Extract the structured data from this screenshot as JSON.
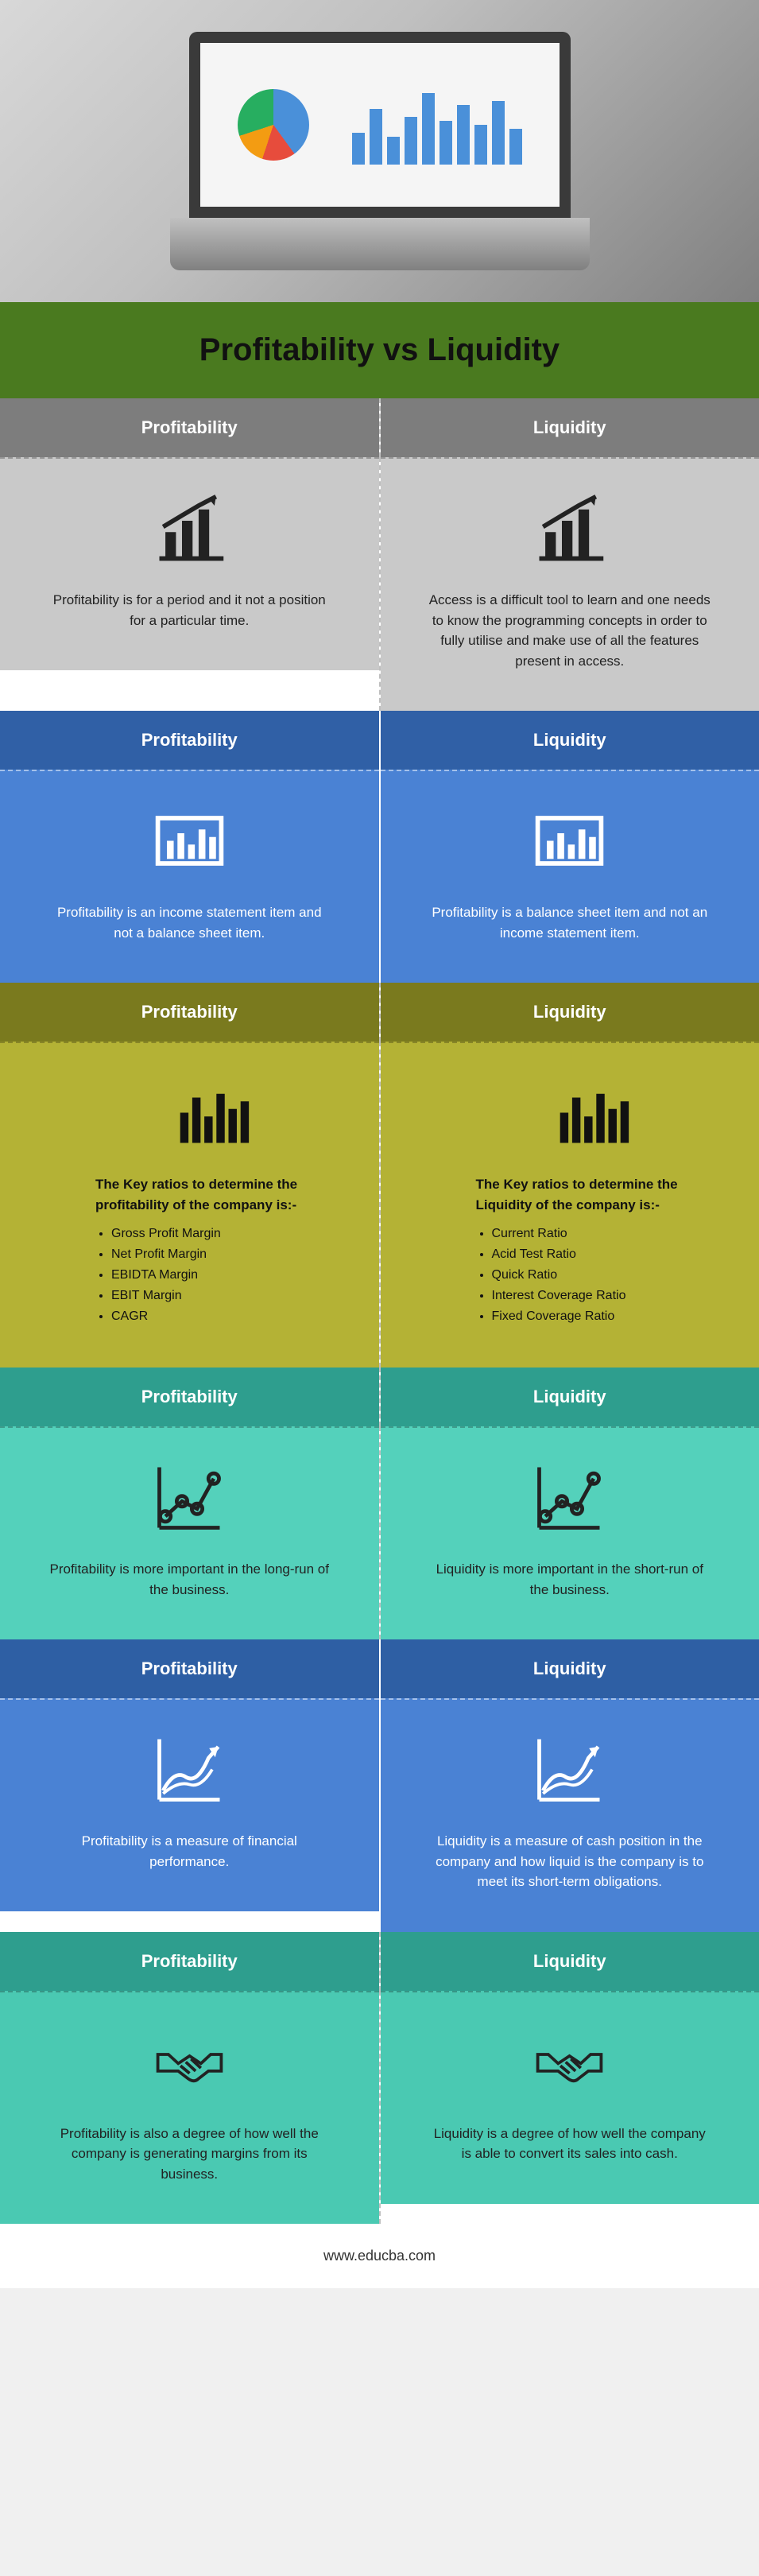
{
  "title": "Profitability vs Liquidity",
  "left_label": "Profitability",
  "right_label": "Liquidity",
  "footer": "www.educba.com",
  "hero": {
    "bar_heights": [
      40,
      70,
      35,
      60,
      90,
      55,
      75,
      50,
      80,
      45
    ]
  },
  "sections": [
    {
      "theme": "s-gray",
      "icon": "bar-growth",
      "left": "Profitability is for a period and it not a position for a particular time.",
      "right": "Access is a difficult tool to learn and one needs to know the programming concepts in order to fully utilise and make use of all the features present in access."
    },
    {
      "theme": "s-blue1",
      "icon": "bar-box",
      "left": "Profitability is an income statement item and not a balance sheet item.",
      "right": "Profitability is a balance sheet item and not an income statement item."
    },
    {
      "theme": "s-olive",
      "icon": "bar-simple",
      "left_intro": "The Key ratios to determine the profitability of the company is:-",
      "left_list": [
        "Gross Profit Margin",
        "Net Profit Margin",
        "EBIDTA Margin",
        "EBIT Margin",
        "CAGR"
      ],
      "right_intro": "The Key ratios to determine the Liquidity of the company is:-",
      "right_list": [
        "Current Ratio",
        "Acid Test Ratio",
        "Quick Ratio",
        "Interest Coverage Ratio",
        "Fixed Coverage Ratio"
      ]
    },
    {
      "theme": "s-teal1",
      "icon": "line-dots",
      "left": "Profitability is more important in the long-run of the business.",
      "right": "Liquidity is more important in the short-run of the business."
    },
    {
      "theme": "s-blue2",
      "icon": "arrow-chart",
      "left": "Profitability is a measure of financial performance.",
      "right": "Liquidity is a measure of cash position in the company and how liquid is the company is to meet its short-term obligations."
    },
    {
      "theme": "s-teal2",
      "icon": "handshake",
      "left": "Profitability is also a degree of how well the company is generating margins from its business.",
      "right": "Liquidity is a degree of how well the company is able to convert its sales into cash."
    }
  ]
}
